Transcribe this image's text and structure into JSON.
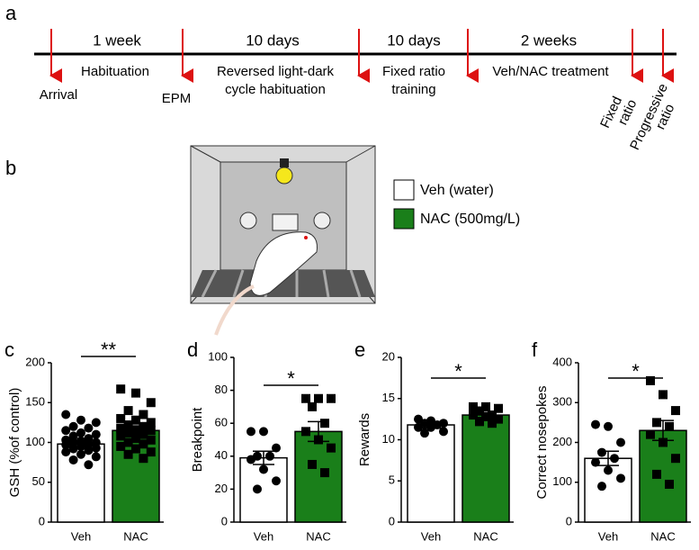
{
  "panels": [
    "a",
    "b"
  ],
  "timeline": {
    "durations": [
      "1 week",
      "10 days",
      "10 days",
      "2 weeks"
    ],
    "phases": [
      [
        "Habituation"
      ],
      [
        "Reversed light-dark",
        "cycle habituation"
      ],
      [
        "Fixed ratio",
        "training"
      ],
      [
        "Veh/NAC treatment"
      ]
    ],
    "events": [
      [
        "Arrival"
      ],
      [
        "EPM"
      ],
      [
        "Fixed",
        "ratio"
      ],
      [
        "Progressive",
        "ratio"
      ]
    ]
  },
  "legend": [
    {
      "label": "Veh (water)",
      "color": "#ffffff"
    },
    {
      "label": "NAC (500mg/L)",
      "color": "#1a7f1a"
    }
  ],
  "chart_data": [
    {
      "type": "bar",
      "panel": "c",
      "ylabel": "GSH (%of control)",
      "categories": [
        "Veh",
        "NAC"
      ],
      "values": [
        98,
        115
      ],
      "errors": [
        4,
        5
      ],
      "colors": [
        "#ffffff",
        "#1a7f1a"
      ],
      "ylim": [
        0,
        200
      ],
      "yticks": [
        0,
        50,
        100,
        150,
        200
      ],
      "significance": "**",
      "points": [
        [
          135,
          128,
          125,
          120,
          118,
          115,
          112,
          110,
          108,
          105,
          103,
          102,
          100,
          100,
          98,
          97,
          95,
          93,
          92,
          90,
          88,
          85,
          82,
          78,
          72
        ],
        [
          167,
          162,
          150,
          140,
          135,
          130,
          128,
          125,
          122,
          120,
          118,
          116,
          115,
          112,
          110,
          108,
          105,
          103,
          100,
          98,
          95,
          92,
          88,
          85,
          80
        ]
      ]
    },
    {
      "type": "bar",
      "panel": "d",
      "ylabel": "Breakpoint",
      "categories": [
        "Veh",
        "NAC"
      ],
      "values": [
        39,
        55
      ],
      "errors": [
        4,
        6
      ],
      "colors": [
        "#ffffff",
        "#1a7f1a"
      ],
      "ylim": [
        0,
        100
      ],
      "yticks": [
        0,
        20,
        40,
        60,
        80,
        100
      ],
      "significance": "*",
      "points": [
        [
          55,
          55,
          45,
          40,
          40,
          38,
          32,
          25,
          20
        ],
        [
          75,
          75,
          75,
          70,
          60,
          55,
          50,
          45,
          35,
          30
        ]
      ]
    },
    {
      "type": "bar",
      "panel": "e",
      "ylabel": "Rewards",
      "categories": [
        "Veh",
        "NAC"
      ],
      "values": [
        11.8,
        13
      ],
      "errors": [
        0.4,
        0.3
      ],
      "colors": [
        "#ffffff",
        "#1a7f1a"
      ],
      "ylim": [
        0,
        20
      ],
      "yticks": [
        0,
        5,
        10,
        15,
        20
      ],
      "significance": "*",
      "points": [
        [
          12.5,
          12.3,
          12,
          12,
          11.8,
          11.5,
          11.5,
          11,
          10.8
        ],
        [
          14,
          14,
          13.8,
          13.5,
          13,
          13,
          12.8,
          12.5,
          12.2,
          12
        ]
      ]
    },
    {
      "type": "bar",
      "panel": "f",
      "ylabel": "Correct nosepokes",
      "categories": [
        "Veh",
        "NAC"
      ],
      "values": [
        160,
        230
      ],
      "errors": [
        18,
        25
      ],
      "colors": [
        "#ffffff",
        "#1a7f1a"
      ],
      "ylim": [
        0,
        400
      ],
      "yticks": [
        0,
        100,
        200,
        300,
        400
      ],
      "significance": "*",
      "points": [
        [
          245,
          240,
          200,
          175,
          160,
          150,
          130,
          110,
          90
        ],
        [
          355,
          320,
          280,
          250,
          240,
          220,
          200,
          160,
          120,
          95
        ]
      ]
    }
  ]
}
